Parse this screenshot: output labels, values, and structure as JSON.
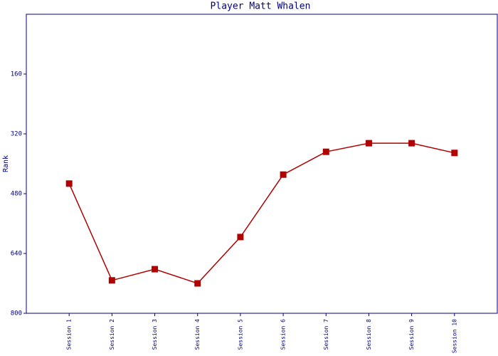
{
  "chart_data": {
    "type": "line",
    "title": "Player Matt Whalen",
    "y_label": "Rank",
    "categories": [
      "Session 1",
      "Session 2",
      "Session 3",
      "Session 4",
      "Session 5",
      "Session 6",
      "Session 7",
      "Session 8",
      "Session 9",
      "Session 10"
    ],
    "series": [
      {
        "name": "Rank",
        "color": "#b00000",
        "values": [
          453,
          712,
          682,
          720,
          596,
          429,
          368,
          345,
          345,
          371
        ]
      }
    ],
    "ylim": [
      0,
      800
    ],
    "y_inverted": true,
    "yticks": [
      160,
      320,
      480,
      640,
      800
    ],
    "grid": false
  }
}
